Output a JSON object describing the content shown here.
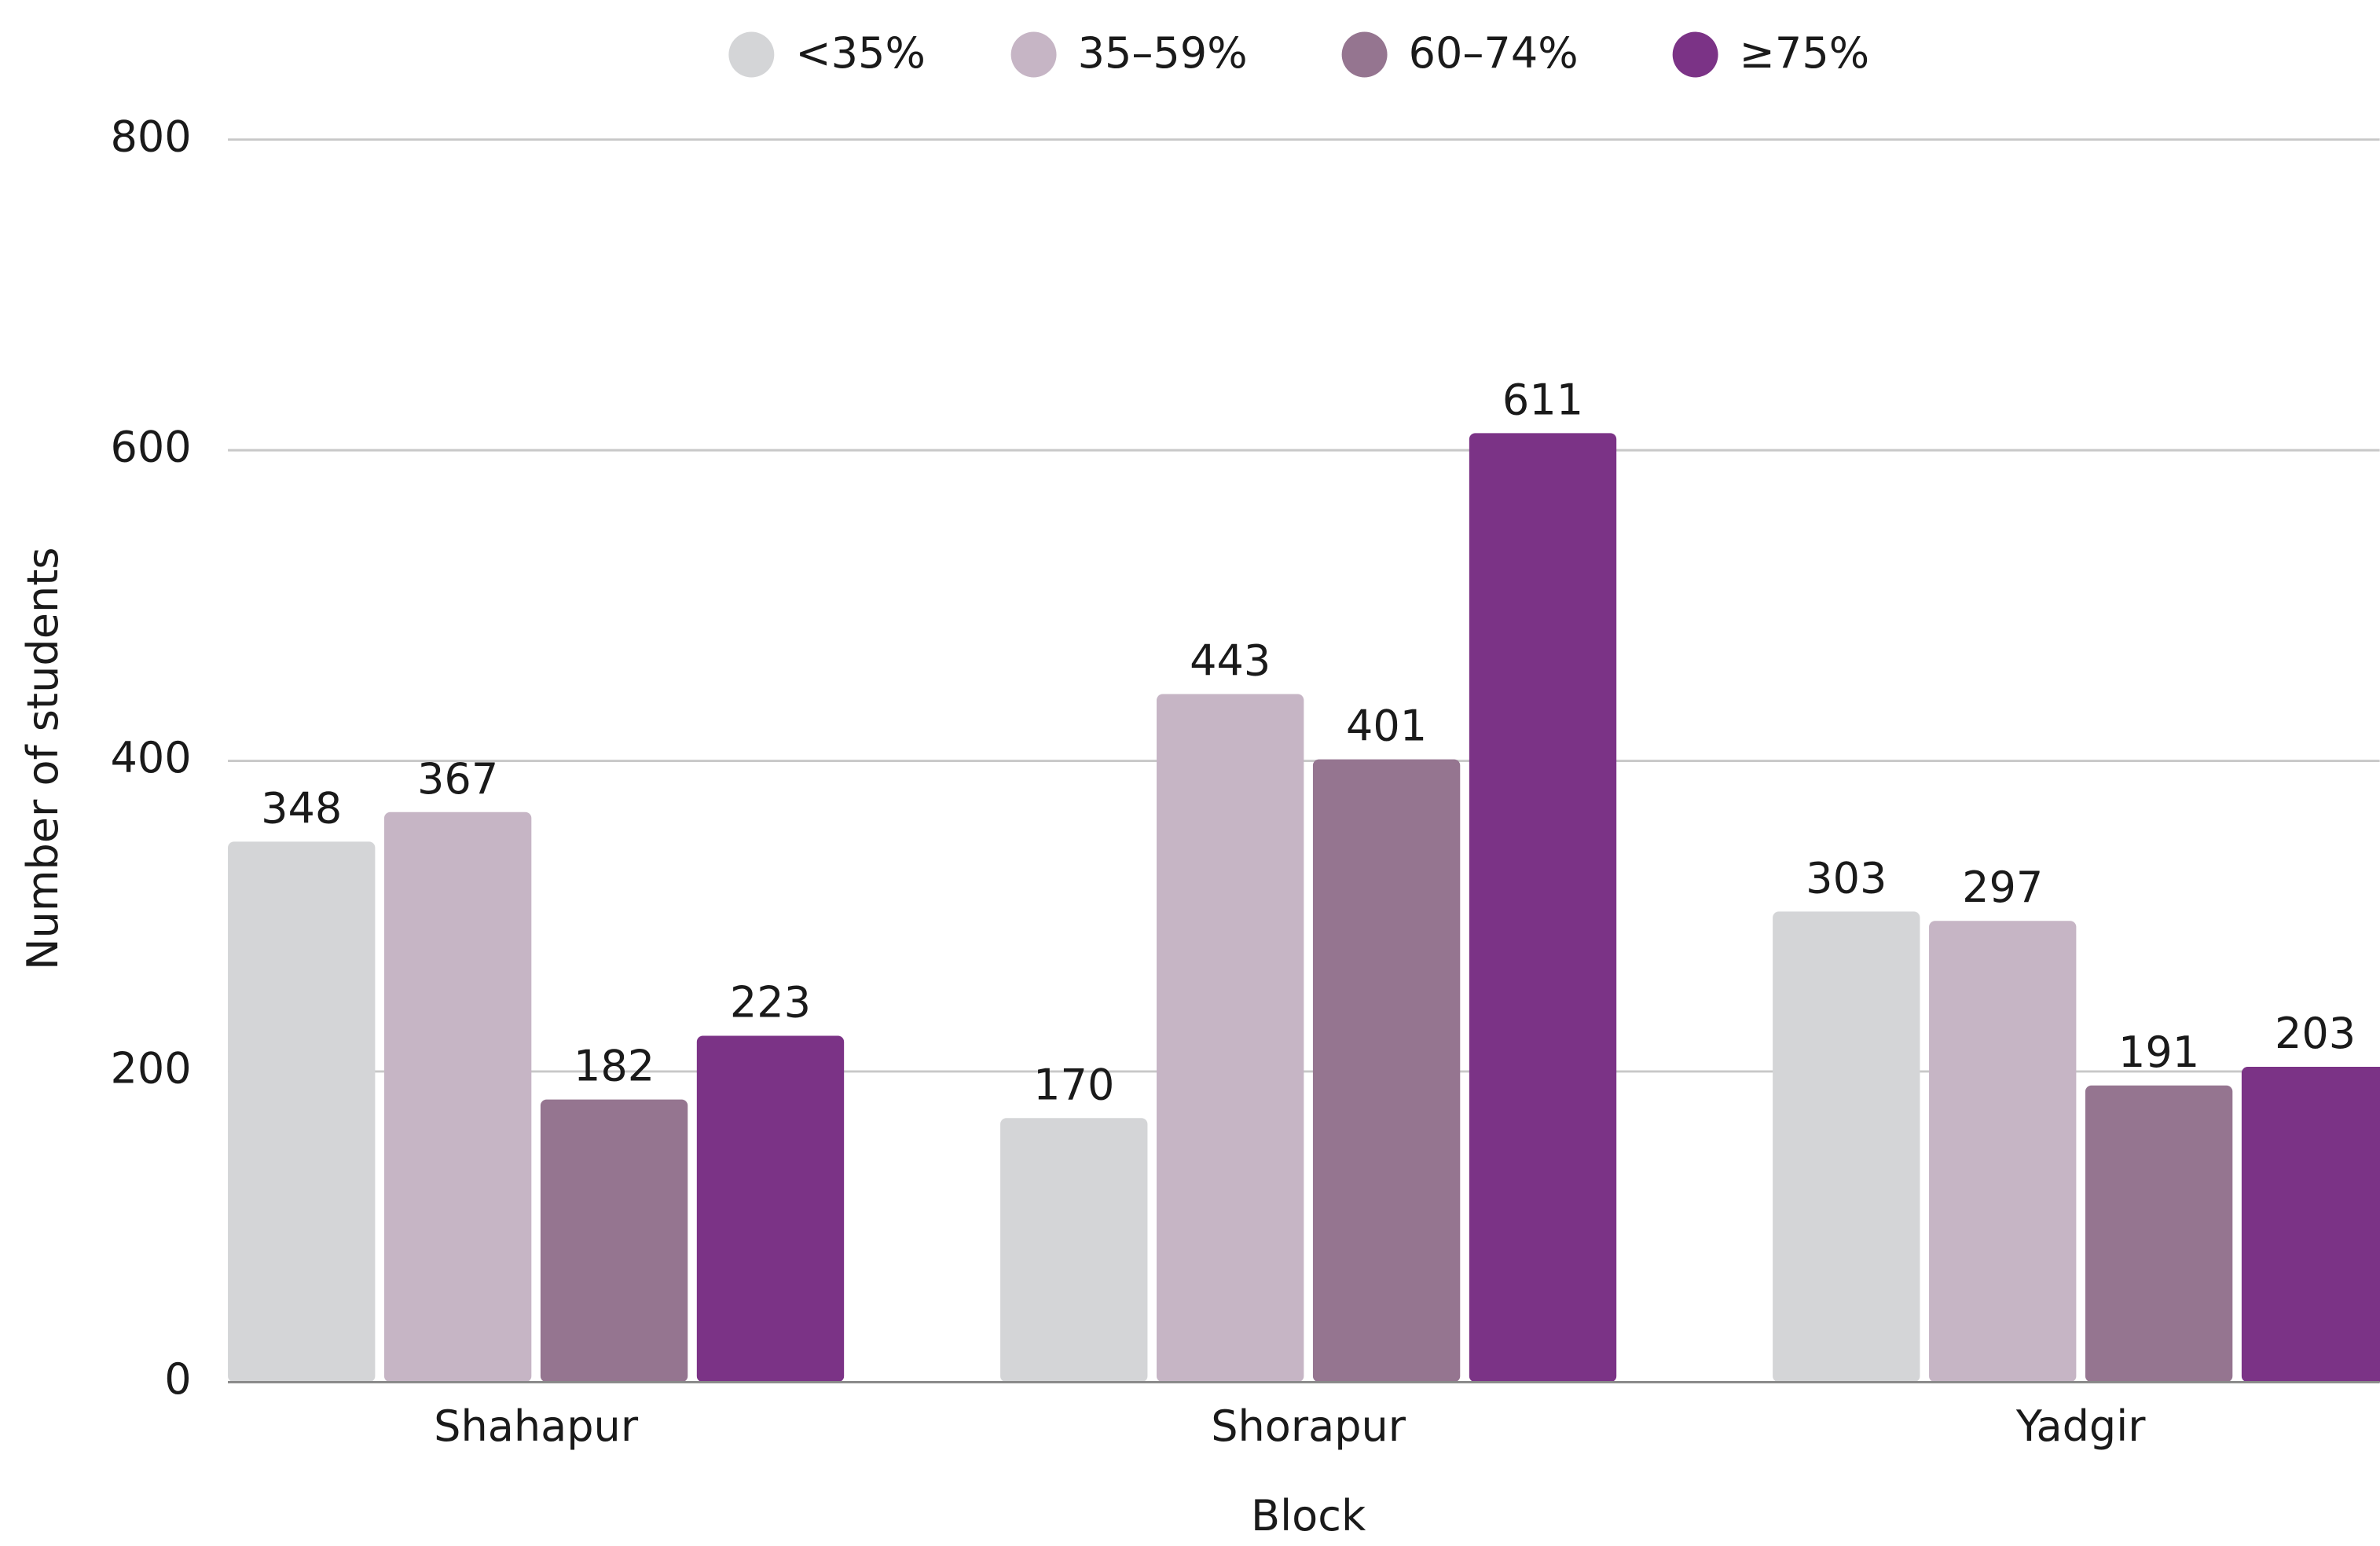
{
  "chart_data": {
    "type": "bar",
    "x_label": "Block",
    "y_label": "Number of students",
    "categories": [
      "Shahapur",
      "Shorapur",
      "Yadgir"
    ],
    "series": [
      {
        "name": "<35%",
        "color": "#d4d5d7",
        "values": [
          348,
          170,
          303
        ]
      },
      {
        "name": "35–59%",
        "color": "#c6b5c5",
        "values": [
          367,
          443,
          297
        ]
      },
      {
        "name": "60–74%",
        "color": "#957590",
        "values": [
          182,
          401,
          191
        ]
      },
      {
        "name": "≥75%",
        "color": "#7b3386",
        "values": [
          223,
          611,
          203
        ]
      }
    ],
    "ylim": [
      0,
      800
    ],
    "yticks": [
      0,
      200,
      400,
      600,
      800
    ],
    "grid": true,
    "legend": "top"
  }
}
